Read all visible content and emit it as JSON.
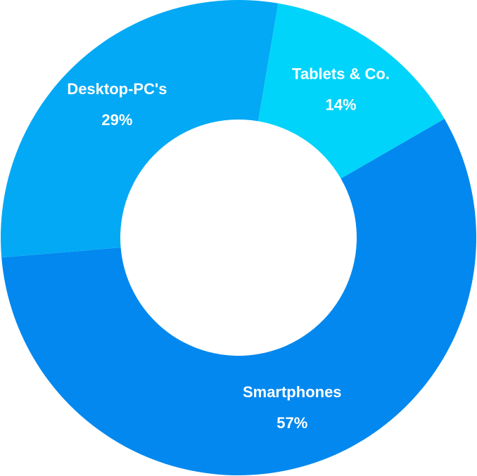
{
  "chart_data": {
    "type": "pie",
    "variant": "donut",
    "slices": [
      {
        "label": "Smartphones",
        "value": 57,
        "value_label": "57%",
        "color": "#0288EE"
      },
      {
        "label": "Desktop-PC's",
        "value": 29,
        "value_label": "29%",
        "color": "#03A9F4"
      },
      {
        "label": "Tablets & Co.",
        "value": 14,
        "value_label": "14%",
        "color": "#00D4FA"
      }
    ],
    "legend": "none"
  }
}
